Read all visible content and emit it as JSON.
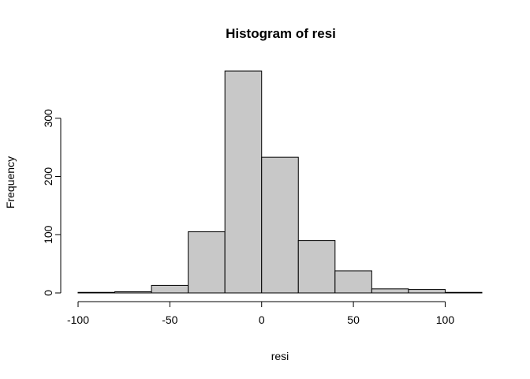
{
  "chart_data": {
    "type": "bar",
    "title": "Histogram of resi",
    "xlabel": "resi",
    "ylabel": "Frequency",
    "bar_color": "#c8c8c8",
    "border_color": "#000000",
    "bins": [
      {
        "from": -100,
        "to": -80,
        "count": 1
      },
      {
        "from": -80,
        "to": -60,
        "count": 2
      },
      {
        "from": -60,
        "to": -40,
        "count": 13
      },
      {
        "from": -40,
        "to": -20,
        "count": 105
      },
      {
        "from": -20,
        "to": 0,
        "count": 381
      },
      {
        "from": 0,
        "to": 20,
        "count": 233
      },
      {
        "from": 20,
        "to": 40,
        "count": 90
      },
      {
        "from": 40,
        "to": 60,
        "count": 38
      },
      {
        "from": 60,
        "to": 80,
        "count": 7
      },
      {
        "from": 80,
        "to": 100,
        "count": 6
      },
      {
        "from": 100,
        "to": 120,
        "count": 1
      }
    ],
    "xlim": [
      -100,
      120
    ],
    "ylim": [
      0,
      381
    ],
    "x_ticks": [
      -100,
      -50,
      0,
      50,
      100
    ],
    "y_ticks": [
      0,
      100,
      200,
      300
    ],
    "grid": false,
    "legend": "none"
  }
}
